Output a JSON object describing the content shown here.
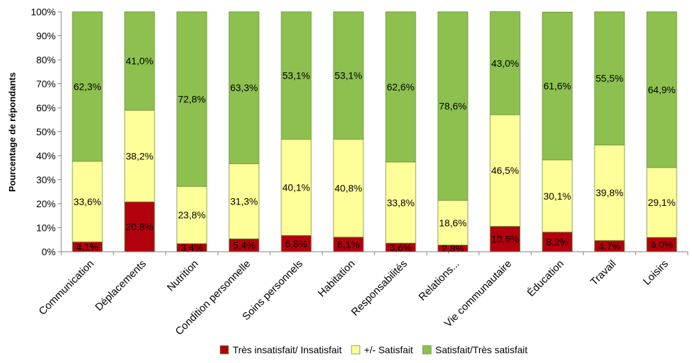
{
  "chart_data": {
    "type": "bar",
    "stacked": true,
    "title": "",
    "xlabel": "",
    "ylabel": "Pourcentage de répondants",
    "ylim": [
      0,
      100
    ],
    "yticks": [
      "0%",
      "10%",
      "20%",
      "30%",
      "40%",
      "50%",
      "60%",
      "70%",
      "80%",
      "90%",
      "100%"
    ],
    "grid": false,
    "legend_position": "bottom",
    "categories": [
      "Communication",
      "Déplacements",
      "Nutrition",
      "Condition personnelle",
      "Soins personnels",
      "Habitation",
      "Responsabilités",
      "Relations...",
      "Vie communautaire",
      "Éducation",
      "Travail",
      "Loisirs"
    ],
    "series": [
      {
        "name": "Très insatisfait/ Insatisfait",
        "color": "#b3000f",
        "values": [
          4.1,
          20.8,
          3.4,
          5.4,
          6.8,
          6.1,
          3.6,
          2.8,
          10.6,
          8.2,
          4.7,
          6.0
        ],
        "labels": [
          "4,1%",
          "20,8%",
          "3,4%",
          "5,4%",
          "6,8%",
          "6,1%",
          "3,6%",
          "2,8%",
          "10,6%",
          "8,2%",
          "4,7%",
          "6,0%"
        ]
      },
      {
        "name": "+/- Satisfait",
        "color": "#ffff99",
        "values": [
          33.6,
          38.2,
          23.8,
          31.3,
          40.1,
          40.8,
          33.8,
          18.6,
          46.5,
          30.1,
          39.8,
          29.1
        ],
        "labels": [
          "33,6%",
          "38,2%",
          "23,8%",
          "31,3%",
          "40,1%",
          "40,8%",
          "33,8%",
          "18,6%",
          "46,5%",
          "30,1%",
          "39,8%",
          "29,1%"
        ]
      },
      {
        "name": "Satisfait/Très satisfait",
        "color": "#8dc04f",
        "values": [
          62.3,
          41.0,
          72.8,
          63.3,
          53.1,
          53.1,
          62.6,
          78.6,
          43.0,
          61.6,
          55.5,
          64.9
        ],
        "labels": [
          "62,3%",
          "41,0%",
          "72,8%",
          "63,3%",
          "53,1%",
          "53,1%",
          "62,6%",
          "78,6%",
          "43,0%",
          "61,6%",
          "55,5%",
          "64,9%"
        ]
      }
    ]
  }
}
